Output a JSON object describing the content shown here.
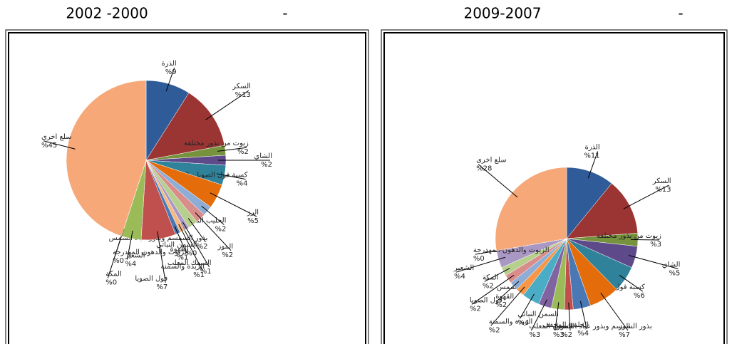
{
  "chart_data": [
    {
      "type": "pie",
      "title": "2002 -2000",
      "subtitle": "-",
      "categories": [
        "الذرة",
        "السكر",
        "زيوت من بذور مختلفة",
        "الشاي",
        "كسبة فول الصويا و القطن والزيتون وعباد الشمس",
        "الرز",
        "الحليب المجفف",
        "الموز",
        "بذور السمسم وبذور عباد الشمس",
        "السمك المعلب",
        "السمن النباتي",
        "الزبدة والسمنة",
        "القهوة",
        "فول الصويا",
        "الشعير",
        "المكة",
        "الزيوت والدهون المهدرجة",
        "سلع اخرى"
      ],
      "values": [
        9,
        13,
        2,
        2,
        4,
        5,
        2,
        2,
        2,
        1,
        0,
        1,
        1,
        7,
        4,
        0,
        0,
        45
      ],
      "value_labels": [
        "%9",
        "%13",
        "%2",
        "%2",
        "%4",
        "%5",
        "%2",
        "%2",
        "%2",
        "%1",
        "%0",
        "%1",
        "%1",
        "%7",
        "%4",
        "%0",
        "%0",
        "%45"
      ],
      "colors": [
        "#2f5c98",
        "#9b3533",
        "#76923c",
        "#5e4a8a",
        "#2f8299",
        "#e46c0a",
        "#8eadd6",
        "#d98d8b",
        "#b7cf8c",
        "#a998c4",
        "#8ccadb",
        "#f7b87f",
        "#4a78b5",
        "#c0504d",
        "#9bbb59",
        "#8064a2",
        "#4bacc6",
        "#f6a878"
      ]
    },
    {
      "type": "pie",
      "title": "2009-2007",
      "subtitle": "-",
      "categories": [
        "الذرة",
        "السكر",
        "زيوت من بذور مختلفة",
        "الشاي",
        "كسبة فول الصويا و القطن والزيتون وعباد الشمس",
        "الرز",
        "الحليب المجفف",
        "الموز",
        "بذور السمسم وبذور عباد الشمس",
        "السمك المعلب",
        "السمن النباتي",
        "الزبدة والسمنة",
        "القهوة",
        "فول الصويا",
        "المكة",
        "الشعير",
        "الزيوت والدهون المهدرجة",
        "سلع اخرى"
      ],
      "values": [
        11,
        13,
        3,
        5,
        6,
        7,
        4,
        2,
        3,
        3,
        4,
        2,
        2,
        2,
        2,
        4,
        0,
        28
      ],
      "value_labels": [
        "%11",
        "%13",
        "%3",
        "%5",
        "%6",
        "%7",
        "%4",
        "%2",
        "%3",
        "%3",
        "%4",
        "%2",
        "%2",
        "%2",
        "%2",
        "%4",
        "%0",
        "%28"
      ],
      "colors": [
        "#2f5c98",
        "#9b3533",
        "#76923c",
        "#5e4a8a",
        "#2f8299",
        "#e46c0a",
        "#4a78b5",
        "#c0504d",
        "#9bbb59",
        "#8064a2",
        "#4bacc6",
        "#f79646",
        "#8eadd6",
        "#d98d8b",
        "#b7cf8c",
        "#a998c4",
        "#8ccadb",
        "#f6a878"
      ]
    }
  ]
}
